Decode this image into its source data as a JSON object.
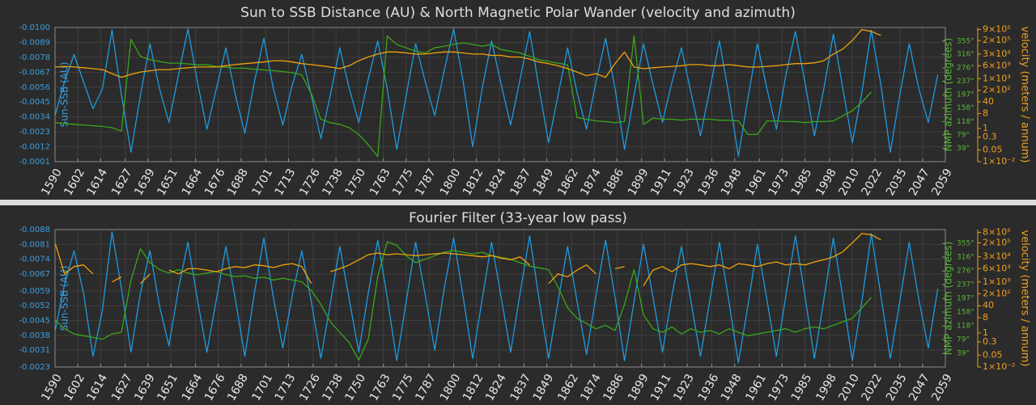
{
  "chart_data": [
    {
      "type": "line",
      "title": "Sun to SSB Distance (AU) & North Magnetic Polar Wander (velocity and azimuth)",
      "ylabel": "Sun-SSB (AU)",
      "y2label": "NMP azimuth (degrees)",
      "y3label": "velocity (meters / annum)",
      "xlim": [
        1590,
        2059
      ],
      "xticks": [
        1590,
        1602,
        1614,
        1627,
        1639,
        1651,
        1664,
        1676,
        1688,
        1701,
        1713,
        1726,
        1738,
        1750,
        1763,
        1775,
        1787,
        1800,
        1812,
        1824,
        1837,
        1849,
        1862,
        1874,
        1886,
        1899,
        1911,
        1923,
        1936,
        1948,
        1961,
        1973,
        1985,
        1998,
        2010,
        2022,
        2035,
        2047,
        2059
      ],
      "ylim": [
        -0.0001,
        -0.01
      ],
      "yticks": [
        {
          "value": -0.01,
          "label": "-0.0100"
        },
        -0.0089,
        -0.0078,
        -0.0067,
        -0.0056,
        -0.0045,
        -0.0034,
        -0.0023,
        -0.0012,
        -0.0001
      ],
      "y2lim": [
        0,
        395
      ],
      "y2ticks": [
        {
          "value": 39,
          "label": "39°"
        },
        {
          "value": 79,
          "label": "79°"
        },
        {
          "value": 118,
          "label": "118°"
        },
        {
          "value": 158,
          "label": "158°"
        },
        {
          "value": 197,
          "label": "197°"
        },
        {
          "value": 237,
          "label": "237°"
        },
        {
          "value": 276,
          "label": "276°"
        },
        {
          "value": 316,
          "label": "316°"
        },
        {
          "value": 355,
          "label": "355°"
        }
      ],
      "y3log": true,
      "y3lim": [
        0.01,
        1200000
      ],
      "y3ticks": [
        {
          "value": 0.01,
          "label": "1×10⁻²"
        },
        0.05,
        0.3,
        1,
        8,
        40,
        {
          "value": 200,
          "label": "2×10²"
        },
        {
          "value": 1000,
          "label": "1×10³"
        },
        {
          "value": 6000,
          "label": "6×10³"
        },
        {
          "value": 30000,
          "label": "3×10⁴"
        },
        {
          "value": 200000,
          "label": "2×10⁵"
        },
        {
          "value": 900000,
          "label": "9×10⁵"
        }
      ],
      "grid": true,
      "x": [
        1590,
        1595,
        1600,
        1605,
        1610,
        1615,
        1620,
        1625,
        1630,
        1635,
        1640,
        1645,
        1650,
        1655,
        1660,
        1665,
        1670,
        1675,
        1680,
        1685,
        1690,
        1695,
        1700,
        1705,
        1710,
        1715,
        1720,
        1725,
        1730,
        1735,
        1740,
        1745,
        1750,
        1755,
        1760,
        1765,
        1770,
        1775,
        1780,
        1785,
        1790,
        1795,
        1800,
        1805,
        1810,
        1815,
        1820,
        1825,
        1830,
        1835,
        1840,
        1845,
        1850,
        1855,
        1860,
        1865,
        1870,
        1875,
        1880,
        1885,
        1890,
        1895,
        1900,
        1905,
        1910,
        1915,
        1920,
        1925,
        1930,
        1935,
        1940,
        1945,
        1950,
        1955,
        1960,
        1965,
        1970,
        1975,
        1980,
        1985,
        1990,
        1995,
        2000,
        2005,
        2010,
        2015,
        2020,
        2025,
        2030,
        2035,
        2040,
        2045,
        2050,
        2055
      ],
      "series": [
        {
          "axis": "y",
          "color": "#1e9be0",
          "values": [
            -0.0035,
            -0.006,
            -0.008,
            -0.006,
            -0.004,
            -0.0055,
            -0.0098,
            -0.005,
            -0.0008,
            -0.005,
            -0.0088,
            -0.0055,
            -0.003,
            -0.0065,
            -0.0099,
            -0.006,
            -0.0025,
            -0.0055,
            -0.0085,
            -0.005,
            -0.0022,
            -0.006,
            -0.0092,
            -0.0055,
            -0.0028,
            -0.0058,
            -0.008,
            -0.005,
            -0.0018,
            -0.005,
            -0.0085,
            -0.0055,
            -0.003,
            -0.0062,
            -0.009,
            -0.0055,
            -0.001,
            -0.005,
            -0.0088,
            -0.006,
            -0.0035,
            -0.0068,
            -0.0099,
            -0.006,
            -0.0012,
            -0.0055,
            -0.009,
            -0.0058,
            -0.0028,
            -0.0062,
            -0.0097,
            -0.0055,
            -0.0015,
            -0.005,
            -0.0085,
            -0.0052,
            -0.0025,
            -0.006,
            -0.0092,
            -0.0055,
            -0.001,
            -0.005,
            -0.0088,
            -0.0058,
            -0.003,
            -0.006,
            -0.0085,
            -0.0052,
            -0.002,
            -0.0055,
            -0.009,
            -0.005,
            -0.0005,
            -0.0048,
            -0.0088,
            -0.0055,
            -0.0025,
            -0.0065,
            -0.0097,
            -0.006,
            -0.002,
            -0.0055,
            -0.0095,
            -0.0055,
            -0.0015,
            -0.0052,
            -0.0098,
            -0.0058,
            -0.0008,
            -0.005,
            -0.0088,
            -0.0055,
            -0.003,
            -0.0065
          ]
        },
        {
          "axis": "y2",
          "color": "#3aa61a",
          "values": [
            115,
            112,
            110,
            108,
            106,
            104,
            100,
            90,
            360,
            310,
            300,
            295,
            290,
            290,
            288,
            285,
            285,
            280,
            278,
            275,
            275,
            272,
            270,
            268,
            265,
            262,
            255,
            200,
            125,
            115,
            110,
            100,
            80,
            50,
            15,
            370,
            345,
            335,
            325,
            320,
            335,
            340,
            345,
            350,
            345,
            340,
            345,
            330,
            325,
            320,
            310,
            300,
            295,
            290,
            285,
            130,
            125,
            120,
            118,
            115,
            118,
            370,
            110,
            128,
            125,
            125,
            122,
            125,
            125,
            125,
            122,
            122,
            120,
            80,
            80,
            120,
            120,
            118,
            118,
            115,
            118,
            118,
            120,
            135,
            150,
            175,
            205,
            null,
            null,
            null,
            null,
            null,
            null,
            null
          ]
        },
        {
          "axis": "y3",
          "color": "#f0a30a",
          "values": [
            5000,
            5500,
            5000,
            4500,
            4000,
            3500,
            2000,
            1200,
            1800,
            2500,
            3000,
            3500,
            3500,
            4000,
            4500,
            5000,
            5000,
            5000,
            6000,
            7000,
            8000,
            9000,
            10000,
            12000,
            12000,
            10000,
            8000,
            7000,
            6000,
            5000,
            4000,
            6000,
            12000,
            20000,
            30000,
            40000,
            40000,
            35000,
            30000,
            30000,
            35000,
            40000,
            40000,
            35000,
            30000,
            30000,
            25000,
            25000,
            20000,
            20000,
            15000,
            10000,
            8000,
            6000,
            4000,
            2500,
            1500,
            2000,
            1200,
            8000,
            40000,
            5000,
            4000,
            4500,
            5000,
            5500,
            6000,
            7000,
            7000,
            6000,
            6000,
            7000,
            6000,
            5000,
            5000,
            5500,
            6000,
            7000,
            8000,
            8000,
            9000,
            12000,
            30000,
            60000,
            200000,
            900000,
            700000,
            400000,
            null,
            null,
            null,
            null,
            null,
            null
          ]
        }
      ]
    },
    {
      "type": "line",
      "title": "Fourier Filter (33-year low pass)",
      "ylabel": "Sun-SSB (AU)",
      "y2label": "NMP azimuth (degrees)",
      "y3label": "velocity (meters / annum)",
      "xlim": [
        1590,
        2059
      ],
      "xticks": [
        1590,
        1602,
        1614,
        1627,
        1639,
        1651,
        1664,
        1676,
        1688,
        1701,
        1713,
        1726,
        1738,
        1750,
        1763,
        1775,
        1787,
        1800,
        1812,
        1824,
        1837,
        1849,
        1862,
        1874,
        1886,
        1899,
        1911,
        1923,
        1936,
        1948,
        1961,
        1973,
        1985,
        1998,
        2010,
        2022,
        2035,
        2047,
        2059
      ],
      "ylim": [
        -0.0023,
        -0.0088
      ],
      "yticks": [
        -0.0088,
        -0.0081,
        -0.0074,
        -0.0067,
        -0.0059,
        -0.0052,
        -0.0045,
        -0.0038,
        -0.0031,
        -0.0023
      ],
      "y2lim": [
        0,
        395
      ],
      "y2ticks": [
        {
          "value": 39,
          "label": "39°"
        },
        {
          "value": 79,
          "label": "79°"
        },
        {
          "value": 118,
          "label": "118°"
        },
        {
          "value": 158,
          "label": "158°"
        },
        {
          "value": 197,
          "label": "197°"
        },
        {
          "value": 237,
          "label": "237°"
        },
        {
          "value": 276,
          "label": "276°"
        },
        {
          "value": 316,
          "label": "316°"
        },
        {
          "value": 355,
          "label": "355°"
        }
      ],
      "y3log": true,
      "y3lim": [
        0.01,
        1200000
      ],
      "y3ticks": [
        {
          "value": 0.01,
          "label": "1×10⁻²"
        },
        0.05,
        0.3,
        1,
        8,
        40,
        {
          "value": 200,
          "label": "2×10²"
        },
        {
          "value": 1000,
          "label": "1×10³"
        },
        {
          "value": 6000,
          "label": "6×10³"
        },
        {
          "value": 30000,
          "label": "3×10⁴"
        },
        {
          "value": 200000,
          "label": "2×10⁵"
        },
        {
          "value": 800000,
          "label": "8×10⁵"
        }
      ],
      "grid": true,
      "x": [
        1590,
        1595,
        1600,
        1605,
        1610,
        1615,
        1620,
        1625,
        1630,
        1635,
        1640,
        1645,
        1650,
        1655,
        1660,
        1665,
        1670,
        1675,
        1680,
        1685,
        1690,
        1695,
        1700,
        1705,
        1710,
        1715,
        1720,
        1725,
        1730,
        1735,
        1740,
        1745,
        1750,
        1755,
        1760,
        1765,
        1770,
        1775,
        1780,
        1785,
        1790,
        1795,
        1800,
        1805,
        1810,
        1815,
        1820,
        1825,
        1830,
        1835,
        1840,
        1845,
        1850,
        1855,
        1860,
        1865,
        1870,
        1875,
        1880,
        1885,
        1890,
        1895,
        1900,
        1905,
        1910,
        1915,
        1920,
        1925,
        1930,
        1935,
        1940,
        1945,
        1950,
        1955,
        1960,
        1965,
        1970,
        1975,
        1980,
        1985,
        1990,
        1995,
        2000,
        2005,
        2010,
        2015,
        2020,
        2025,
        2030,
        2035,
        2040,
        2045,
        2050,
        2055
      ],
      "series": [
        {
          "axis": "y",
          "color": "#1e9be0",
          "values": [
            -0.004,
            -0.0062,
            -0.0078,
            -0.0058,
            -0.0028,
            -0.005,
            -0.0087,
            -0.006,
            -0.003,
            -0.0058,
            -0.0078,
            -0.0052,
            -0.0033,
            -0.006,
            -0.0082,
            -0.0055,
            -0.003,
            -0.0055,
            -0.008,
            -0.0055,
            -0.0028,
            -0.0058,
            -0.0084,
            -0.0056,
            -0.0032,
            -0.0057,
            -0.0078,
            -0.0054,
            -0.0027,
            -0.0053,
            -0.008,
            -0.0055,
            -0.003,
            -0.0058,
            -0.0083,
            -0.0056,
            -0.0026,
            -0.0054,
            -0.0082,
            -0.0057,
            -0.0031,
            -0.006,
            -0.0084,
            -0.0056,
            -0.0027,
            -0.0055,
            -0.0082,
            -0.0056,
            -0.003,
            -0.0058,
            -0.0085,
            -0.0055,
            -0.0027,
            -0.0054,
            -0.008,
            -0.0054,
            -0.0029,
            -0.0057,
            -0.0083,
            -0.0056,
            -0.0026,
            -0.0054,
            -0.0081,
            -0.0056,
            -0.003,
            -0.0057,
            -0.008,
            -0.0054,
            -0.0028,
            -0.0055,
            -0.0082,
            -0.0054,
            -0.0025,
            -0.0052,
            -0.0081,
            -0.0055,
            -0.0028,
            -0.0057,
            -0.0085,
            -0.0057,
            -0.0027,
            -0.0055,
            -0.0084,
            -0.0056,
            -0.0026,
            -0.0054,
            -0.0086,
            -0.0057,
            -0.0027,
            -0.0054,
            -0.0082,
            -0.0055,
            -0.0032,
            -0.006
          ]
        },
        {
          "axis": "y2",
          "color": "#3aa61a",
          "values": [
            135,
            110,
            95,
            90,
            85,
            80,
            95,
            100,
            250,
            340,
            300,
            280,
            270,
            280,
            270,
            265,
            270,
            275,
            265,
            260,
            262,
            255,
            258,
            250,
            255,
            250,
            245,
            220,
            180,
            130,
            100,
            70,
            20,
            80,
            260,
            360,
            350,
            320,
            300,
            310,
            320,
            330,
            335,
            330,
            325,
            330,
            320,
            315,
            310,
            300,
            290,
            285,
            280,
            230,
            170,
            140,
            125,
            110,
            120,
            105,
            180,
            280,
            150,
            110,
            100,
            115,
            95,
            110,
            100,
            105,
            95,
            110,
            100,
            90,
            95,
            100,
            105,
            110,
            100,
            110,
            115,
            110,
            120,
            130,
            140,
            170,
            200,
            null,
            null,
            null,
            null,
            null,
            null,
            null
          ]
        },
        {
          "axis": "y3",
          "color": "#f0a30a",
          "values": [
            200000,
            3000,
            8000,
            10000,
            3000,
            null,
            1000,
            2000,
            null,
            800,
            3000,
            null,
            5000,
            3000,
            6000,
            6000,
            5000,
            4000,
            6000,
            8000,
            7000,
            10000,
            9000,
            7000,
            10000,
            12000,
            8000,
            800,
            null,
            4000,
            6000,
            10000,
            20000,
            40000,
            50000,
            40000,
            45000,
            40000,
            35000,
            40000,
            45000,
            50000,
            45000,
            40000,
            35000,
            30000,
            35000,
            25000,
            20000,
            30000,
            10000,
            null,
            800,
            3000,
            2000,
            5000,
            10000,
            3000,
            null,
            6000,
            8000,
            null,
            600,
            5000,
            8000,
            4000,
            10000,
            12000,
            10000,
            8000,
            10000,
            6000,
            12000,
            10000,
            8000,
            12000,
            15000,
            10000,
            12000,
            10000,
            15000,
            20000,
            30000,
            60000,
            200000,
            700000,
            600000,
            300000,
            null,
            null,
            null,
            null,
            null,
            null
          ]
        }
      ]
    }
  ]
}
